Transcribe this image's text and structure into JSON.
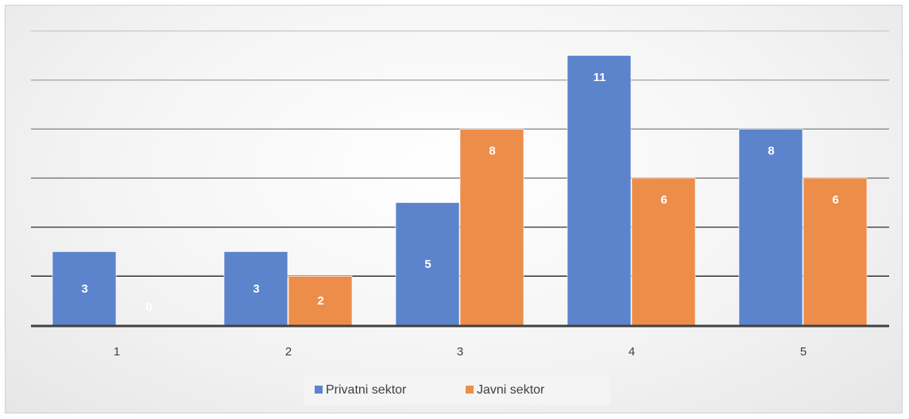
{
  "chart_data": {
    "type": "bar",
    "categories": [
      "1",
      "2",
      "3",
      "4",
      "5"
    ],
    "series": [
      {
        "name": "Privatni sektor",
        "values": [
          3,
          3,
          5,
          11,
          8
        ],
        "color": "#5b84cc"
      },
      {
        "name": "Javni sektor",
        "values": [
          0,
          2,
          8,
          6,
          6
        ],
        "color": "#ed8d4a"
      }
    ],
    "title": "",
    "xlabel": "",
    "ylabel": "",
    "ylim": [
      0,
      12
    ],
    "grid": true,
    "legend": "bottom",
    "value_labels": true
  }
}
